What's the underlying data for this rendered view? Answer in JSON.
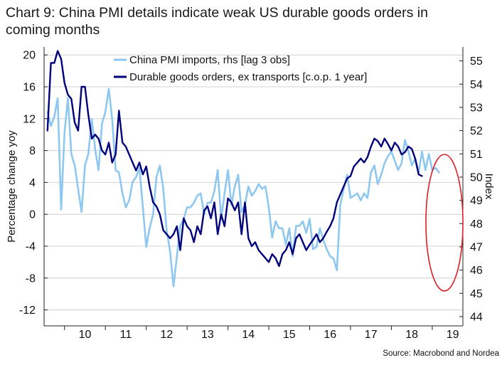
{
  "chart_data": {
    "type": "line",
    "title": "Chart 9: China PMI details indicate weak US durable goods orders in coming months",
    "title_lines": [
      "Chart 9: China PMI details indicate weak US durable goods orders in",
      "coming months"
    ],
    "ylabel": "Percentage change yoy",
    "y2label": "Index",
    "source": "Source: Macrobond and Nordea",
    "ylim": [
      -14,
      21
    ],
    "yticks": [
      20,
      16,
      12,
      8,
      4,
      0,
      -4,
      -8,
      -12
    ],
    "y2lim": [
      43.6,
      55.6
    ],
    "y2ticks": [
      55,
      54,
      53,
      52,
      51,
      50,
      49,
      48,
      47,
      46,
      45,
      44
    ],
    "xlim": [
      2009.5,
      2019.75
    ],
    "xticks": [
      "10",
      "11",
      "12",
      "13",
      "14",
      "15",
      "16",
      "17",
      "18",
      "19"
    ],
    "legend_position": "top-center",
    "grid": "horizontal",
    "colors": {
      "light": "#8ec8f0",
      "dark": "#00007a",
      "annotation": "#dd1f26",
      "grid": "#d0d0d0"
    },
    "series": [
      {
        "name": "China PMI imports, rhs [lag 3 obs]",
        "axis": "right",
        "x": [
          2009.583,
          2009.667,
          2009.75,
          2009.833,
          2009.917,
          2010.0,
          2010.083,
          2010.167,
          2010.25,
          2010.333,
          2010.417,
          2010.5,
          2010.583,
          2010.667,
          2010.75,
          2010.833,
          2010.917,
          2011.0,
          2011.083,
          2011.167,
          2011.25,
          2011.333,
          2011.417,
          2011.5,
          2011.583,
          2011.667,
          2011.75,
          2011.833,
          2011.917,
          2012.0,
          2012.083,
          2012.167,
          2012.25,
          2012.333,
          2012.417,
          2012.5,
          2012.583,
          2012.667,
          2012.75,
          2012.833,
          2012.917,
          2013.0,
          2013.083,
          2013.167,
          2013.25,
          2013.333,
          2013.417,
          2013.5,
          2013.583,
          2013.667,
          2013.75,
          2013.833,
          2013.917,
          2014.0,
          2014.083,
          2014.167,
          2014.25,
          2014.333,
          2014.417,
          2014.5,
          2014.583,
          2014.667,
          2014.75,
          2014.833,
          2014.917,
          2015.0,
          2015.083,
          2015.167,
          2015.25,
          2015.333,
          2015.417,
          2015.5,
          2015.583,
          2015.667,
          2015.75,
          2015.833,
          2015.917,
          2016.0,
          2016.083,
          2016.167,
          2016.25,
          2016.333,
          2016.417,
          2016.5,
          2016.583,
          2016.667,
          2016.75,
          2016.833,
          2016.917,
          2017.0,
          2017.083,
          2017.167,
          2017.25,
          2017.333,
          2017.417,
          2017.5,
          2017.583,
          2017.667,
          2017.75,
          2017.833,
          2017.917,
          2018.0,
          2018.083,
          2018.167,
          2018.25,
          2018.333,
          2018.417,
          2018.5,
          2018.583,
          2018.667,
          2018.75,
          2018.833,
          2018.917,
          2019.0,
          2019.083,
          2019.167
        ],
        "y": [
          52.8,
          52.2,
          52.6,
          53.4,
          48.6,
          51.9,
          53.4,
          51,
          50.5,
          49.5,
          48.5,
          50.5,
          51,
          52.5,
          51.2,
          50.3,
          52.3,
          52.8,
          53.8,
          52.5,
          50.3,
          50.2,
          49.3,
          48.7,
          49,
          49.8,
          50,
          50.4,
          48.7,
          47.0,
          47.8,
          48.4,
          50,
          50.5,
          49.5,
          47.7,
          46.8,
          45.3,
          46.6,
          47.9,
          48.2,
          48.7,
          48.7,
          48.9,
          49.2,
          49.3,
          48.4,
          48.9,
          48.9,
          49.4,
          50.3,
          48.2,
          49.3,
          50.3,
          48.8,
          49.6,
          50.1,
          48.5,
          48.8,
          49.6,
          49.2,
          49.4,
          49.7,
          49.5,
          49.6,
          48.7,
          47.4,
          48.1,
          47.8,
          47.8,
          47.1,
          47.8,
          46.6,
          47.9,
          47.9,
          48.1,
          47.6,
          48.2,
          46.9,
          47.0,
          47.8,
          47.3,
          46.9,
          46.6,
          46.5,
          46.0,
          48.8,
          49.5,
          50.1,
          49.1,
          49.2,
          49.3,
          49.0,
          49.3,
          49.1,
          50.2,
          50.5,
          49.7,
          50.1,
          50.6,
          50.9,
          51.1,
          50.7,
          50.3,
          50.6,
          51.6,
          51.1,
          50.5,
          50.8,
          50.2,
          51.1,
          50.3,
          51.0,
          50.3,
          50.4,
          50.2
        ]
      },
      {
        "name": "Durable goods orders, ex transports [c.o.p. 1 year]",
        "axis": "left",
        "x": [
          2009.583,
          2009.667,
          2009.75,
          2009.833,
          2009.917,
          2010.0,
          2010.083,
          2010.167,
          2010.25,
          2010.333,
          2010.417,
          2010.5,
          2010.583,
          2010.667,
          2010.75,
          2010.833,
          2010.917,
          2011.0,
          2011.083,
          2011.167,
          2011.25,
          2011.333,
          2011.417,
          2011.5,
          2011.583,
          2011.667,
          2011.75,
          2011.833,
          2011.917,
          2012.0,
          2012.083,
          2012.167,
          2012.25,
          2012.333,
          2012.417,
          2012.5,
          2012.583,
          2012.667,
          2012.75,
          2012.833,
          2012.917,
          2013.0,
          2013.083,
          2013.167,
          2013.25,
          2013.333,
          2013.417,
          2013.5,
          2013.583,
          2013.667,
          2013.75,
          2013.833,
          2013.917,
          2014.0,
          2014.083,
          2014.167,
          2014.25,
          2014.333,
          2014.417,
          2014.5,
          2014.583,
          2014.667,
          2014.75,
          2014.833,
          2014.917,
          2015.0,
          2015.083,
          2015.167,
          2015.25,
          2015.333,
          2015.417,
          2015.5,
          2015.583,
          2015.667,
          2015.75,
          2015.833,
          2015.917,
          2016.0,
          2016.083,
          2016.167,
          2016.25,
          2016.333,
          2016.417,
          2016.5,
          2016.583,
          2016.667,
          2016.75,
          2016.833,
          2016.917,
          2017.0,
          2017.083,
          2017.167,
          2017.25,
          2017.333,
          2017.417,
          2017.5,
          2017.583,
          2017.667,
          2017.75,
          2017.833,
          2017.917,
          2018.0,
          2018.083,
          2018.167,
          2018.25,
          2018.333,
          2018.417,
          2018.5,
          2018.583,
          2018.667,
          2018.75
        ],
        "y": [
          10.5,
          19,
          19,
          20.5,
          19.5,
          16.5,
          15,
          14.5,
          11.5,
          10.5,
          16,
          16,
          12.5,
          9.5,
          10,
          9.5,
          8,
          7.5,
          9,
          6.5,
          7.5,
          13,
          9,
          8.5,
          7.5,
          6.5,
          5.5,
          6.5,
          5,
          6,
          3.5,
          1.5,
          1,
          0,
          -2,
          -2.5,
          -3,
          -2.5,
          -1.5,
          -4.5,
          -0.5,
          -1.5,
          -2,
          -3.5,
          -1.5,
          -2.5,
          0.5,
          1,
          -0.5,
          1.5,
          -2.5,
          0,
          -1.5,
          2,
          1.5,
          0.5,
          1.5,
          -2.5,
          1.5,
          -3,
          -4,
          -3.5,
          -4.5,
          -5,
          -5.5,
          -6,
          -5,
          -5.5,
          -6.5,
          -5,
          -4.5,
          -3.5,
          -5,
          -3,
          -2.5,
          -3.5,
          -4.5,
          -3.8,
          -3.2,
          -2.5,
          -3.5,
          -3,
          -2.2,
          -1.5,
          -0.5,
          1.5,
          2.5,
          3.5,
          4.5,
          4.8,
          6,
          6.5,
          7,
          6.5,
          7.2,
          8.5,
          9.5,
          9.2,
          8.5,
          9.5,
          8.8,
          8,
          9,
          8.5,
          7.5,
          7.8,
          8.5,
          8.2,
          7,
          5,
          4.8
        ]
      }
    ],
    "annotations": [
      {
        "type": "ellipse",
        "label": ""
      }
    ]
  }
}
